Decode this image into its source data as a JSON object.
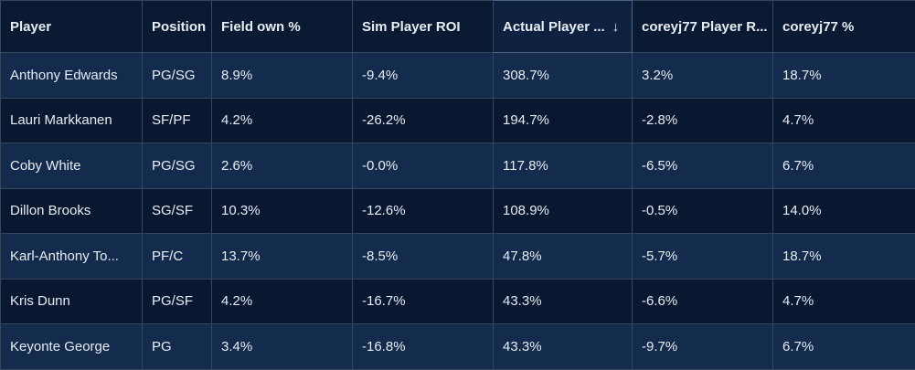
{
  "table": {
    "columns": [
      "Player",
      "Position",
      "Field own %",
      "Sim Player ROI",
      "Actual Player ...",
      "coreyj77 Player R...",
      "coreyj77 %"
    ],
    "rows": [
      [
        "Anthony Edwards",
        "PG/SG",
        "8.9%",
        "-9.4%",
        "308.7%",
        "3.2%",
        "18.7%"
      ],
      [
        "Lauri Markkanen",
        "SF/PF",
        "4.2%",
        "-26.2%",
        "194.7%",
        "-2.8%",
        "4.7%"
      ],
      [
        "Coby White",
        "PG/SG",
        "2.6%",
        "-0.0%",
        "117.8%",
        "-6.5%",
        "6.7%"
      ],
      [
        "Dillon Brooks",
        "SG/SF",
        "10.3%",
        "-12.6%",
        "108.9%",
        "-0.5%",
        "14.0%"
      ],
      [
        "Karl-Anthony To...",
        "PF/C",
        "13.7%",
        "-8.5%",
        "47.8%",
        "-5.7%",
        "18.7%"
      ],
      [
        "Kris Dunn",
        "PG/SF",
        "4.2%",
        "-16.7%",
        "43.3%",
        "-6.6%",
        "4.7%"
      ],
      [
        "Keyonte George",
        "PG",
        "3.4%",
        "-16.8%",
        "43.3%",
        "-9.7%",
        "6.7%"
      ]
    ]
  }
}
